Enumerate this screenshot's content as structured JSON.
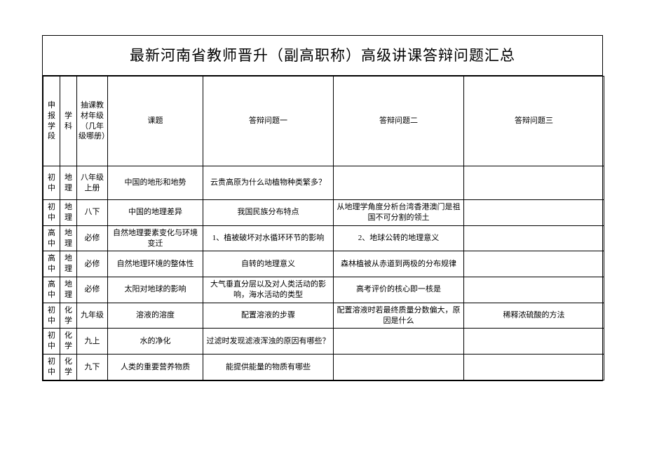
{
  "title": "最新河南省教师晋升（副高职称）高级讲课答辩问题汇总",
  "columns": {
    "c1": "申报学段",
    "c2": "学科",
    "c3": "抽课教材年级（几年级哪册）",
    "c4": "课题",
    "c5": "答辩问题一",
    "c6": "答辩问题二",
    "c7": "答辩问题三"
  },
  "rows": [
    {
      "c1": "初中",
      "c2": "地理",
      "c3": "八年级上册",
      "c4": "中国的地形和地势",
      "c5": "云贵高原为什么动植物种类繁多？",
      "c6": "",
      "c7": ""
    },
    {
      "c1": "初中",
      "c2": "地理",
      "c3": "八下",
      "c4": "中国的地理差异",
      "c5": "我国民族分布特点",
      "c6": "从地理学角度分析台湾香港澳门是祖国不可分割的领土",
      "c7": ""
    },
    {
      "c1": "高中",
      "c2": "地理",
      "c3": "必修",
      "c4": "自然地理要素变化与环境变迁",
      "c5": "1、植被破坏对水循环环节的影响",
      "c6": "2、地球公转的地理意义",
      "c7": ""
    },
    {
      "c1": "高中",
      "c2": "地理",
      "c3": "必修",
      "c4": "自然地理环境的整体性",
      "c5": "自转的地理意义",
      "c6": "森林植被从赤道到两极的分布规律",
      "c7": ""
    },
    {
      "c1": "高中",
      "c2": "地理",
      "c3": "必修",
      "c4": "太阳对地球的影响",
      "c5": "大气垂直分层以及对人类活动的影响，海水活动的类型",
      "c6": "高考评价的核心即一核是",
      "c7": ""
    },
    {
      "c1": "初中",
      "c2": "化学",
      "c3": "九年级",
      "c4": "溶液的溶度",
      "c5": "配置溶液的步骤",
      "c6": "配置溶液时若最终质量分数偏大，原因是什么",
      "c7": "稀释浓硫酸的方法"
    },
    {
      "c1": "初中",
      "c2": "化学",
      "c3": "九上",
      "c4": "水的净化",
      "c5": "过滤时发现滤液浑浊的原因有哪些？",
      "c6": "",
      "c7": ""
    },
    {
      "c1": "初中",
      "c2": "化学",
      "c3": "九下",
      "c4": "人类的重要营养物质",
      "c5": "能提供能量的物质有哪些",
      "c6": "",
      "c7": ""
    }
  ],
  "row_classes": [
    "r-tall",
    "r-med",
    "r-short",
    "r-short",
    "r-med",
    "r-short",
    "r-med",
    "r-med"
  ]
}
